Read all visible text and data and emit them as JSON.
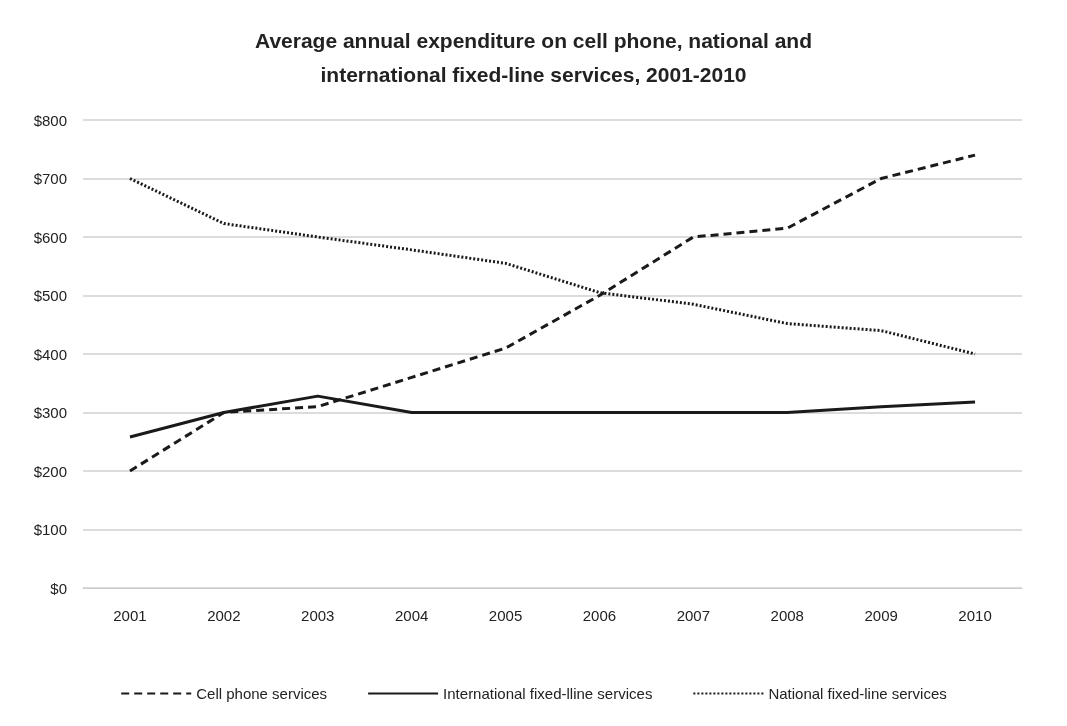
{
  "chart_data": {
    "type": "line",
    "title": "Average annual expenditure on cell phone, national and\ninternational fixed-line services, 2001-2010",
    "categories": [
      "2001",
      "2002",
      "2003",
      "2004",
      "2005",
      "2006",
      "2007",
      "2008",
      "2009",
      "2010"
    ],
    "series": [
      {
        "name": "Cell phone services",
        "color": "#1a1a1a",
        "line_style": "dashed",
        "values": [
          200,
          300,
          310,
          360,
          410,
          500,
          600,
          615,
          700,
          740
        ]
      },
      {
        "name": "International fixed-lline services",
        "color": "#1a1a1a",
        "line_style": "solid",
        "values": [
          258,
          300,
          328,
          300,
          300,
          300,
          300,
          300,
          310,
          318
        ]
      },
      {
        "name": "National fixed-line services",
        "color": "#1a1a1a",
        "line_style": "dotted",
        "values": [
          700,
          623,
          600,
          578,
          555,
          505,
          485,
          452,
          440,
          400
        ]
      }
    ],
    "ylim": [
      0,
      800
    ],
    "yticks": [
      {
        "value": 0,
        "label": "$0"
      },
      {
        "value": 100,
        "label": "$100"
      },
      {
        "value": 200,
        "label": "$200"
      },
      {
        "value": 300,
        "label": "$300"
      },
      {
        "value": 400,
        "label": "$400"
      },
      {
        "value": 500,
        "label": "$500"
      },
      {
        "value": 600,
        "label": "$600"
      },
      {
        "value": 700,
        "label": "$700"
      },
      {
        "value": 800,
        "label": "$800"
      }
    ],
    "grid": "y",
    "legend": "bottom",
    "marker": "none"
  }
}
